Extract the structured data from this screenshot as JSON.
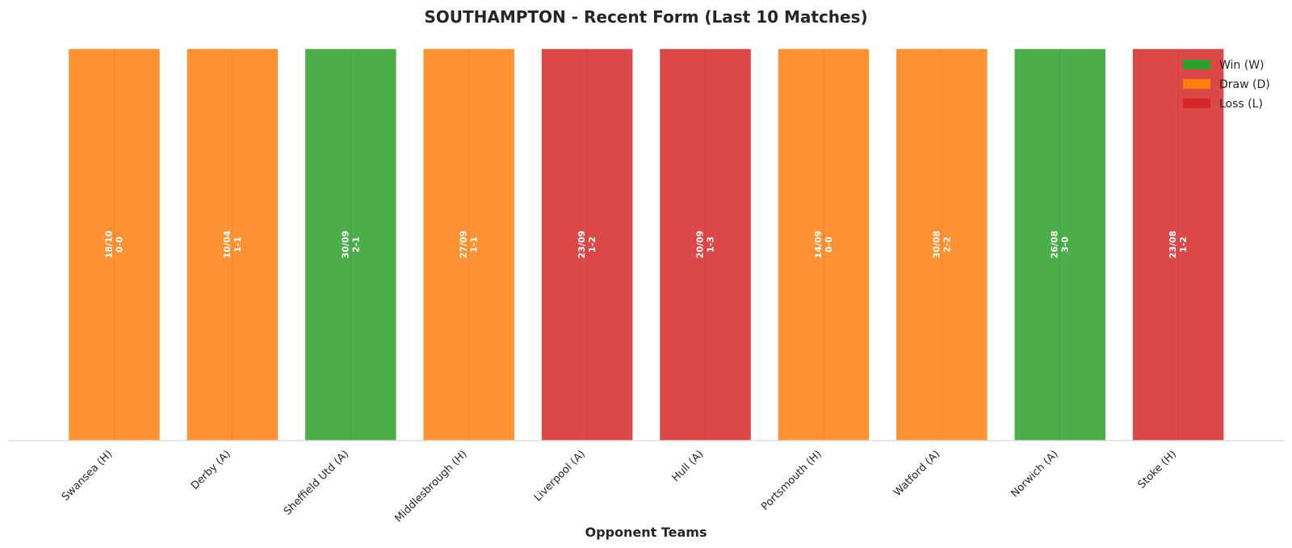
{
  "chart_data": {
    "type": "bar",
    "title": "SOUTHAMPTON - Recent Form (Last 10 Matches)",
    "xlabel": "Opponent Teams",
    "ylabel": "",
    "ylim": [
      0,
      1
    ],
    "grid": false,
    "legend_position": "top-right",
    "categories": [
      "Swansea (H)",
      "Derby (A)",
      "Sheffield Utd (A)",
      "Middlesbrough (H)",
      "Liverpool (A)",
      "Hull (A)",
      "Portsmouth (H)",
      "Watford (A)",
      "Norwich (A)",
      "Stoke (H)"
    ],
    "values": [
      1,
      1,
      1,
      1,
      1,
      1,
      1,
      1,
      1,
      1
    ],
    "results": [
      "D",
      "D",
      "W",
      "D",
      "L",
      "L",
      "D",
      "D",
      "W",
      "L"
    ],
    "dates": [
      "18/10",
      "10/04",
      "30/09",
      "27/09",
      "23/09",
      "20/09",
      "14/09",
      "30/08",
      "26/08",
      "23/08"
    ],
    "scores": [
      "0-0",
      "1-1",
      "2-1",
      "1-1",
      "1-2",
      "1-3",
      "0-0",
      "2-2",
      "3-0",
      "1-2"
    ],
    "legend": [
      {
        "key": "W",
        "label": "Win (W)",
        "color": "#2ca02c"
      },
      {
        "key": "D",
        "label": "Draw (D)",
        "color": "#ff7f0e"
      },
      {
        "key": "L",
        "label": "Loss (L)",
        "color": "#d62728"
      }
    ]
  }
}
